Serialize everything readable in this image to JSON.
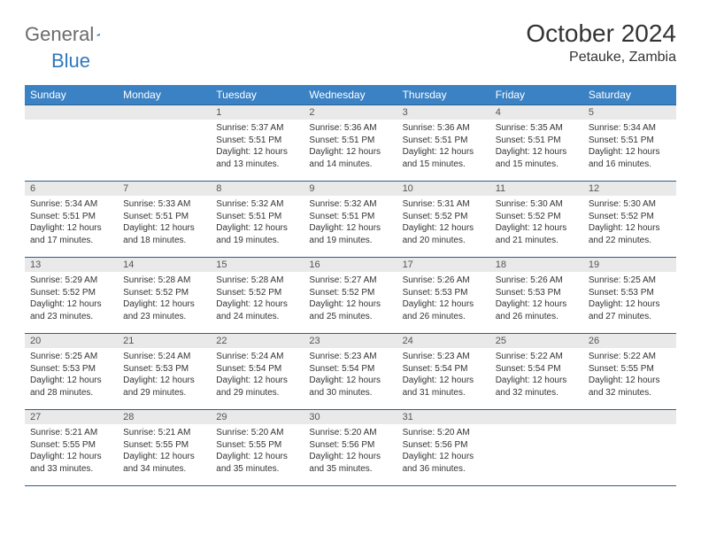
{
  "brand": {
    "part1": "General",
    "part2": "Blue"
  },
  "title": "October 2024",
  "location": "Petauke, Zambia",
  "colors": {
    "header_bg": "#3b82c4",
    "header_text": "#ffffff",
    "daynum_bg": "#e9e9e9",
    "rule": "#2b5f8f",
    "brand_gray": "#6b6b6b",
    "brand_blue": "#2f78bd"
  },
  "weekdays": [
    "Sunday",
    "Monday",
    "Tuesday",
    "Wednesday",
    "Thursday",
    "Friday",
    "Saturday"
  ],
  "weeks": [
    [
      {
        "blank": true
      },
      {
        "blank": true
      },
      {
        "n": "1",
        "sr": "5:37 AM",
        "ss": "5:51 PM",
        "dl": "Daylight: 12 hours and 13 minutes."
      },
      {
        "n": "2",
        "sr": "5:36 AM",
        "ss": "5:51 PM",
        "dl": "Daylight: 12 hours and 14 minutes."
      },
      {
        "n": "3",
        "sr": "5:36 AM",
        "ss": "5:51 PM",
        "dl": "Daylight: 12 hours and 15 minutes."
      },
      {
        "n": "4",
        "sr": "5:35 AM",
        "ss": "5:51 PM",
        "dl": "Daylight: 12 hours and 15 minutes."
      },
      {
        "n": "5",
        "sr": "5:34 AM",
        "ss": "5:51 PM",
        "dl": "Daylight: 12 hours and 16 minutes."
      }
    ],
    [
      {
        "n": "6",
        "sr": "5:34 AM",
        "ss": "5:51 PM",
        "dl": "Daylight: 12 hours and 17 minutes."
      },
      {
        "n": "7",
        "sr": "5:33 AM",
        "ss": "5:51 PM",
        "dl": "Daylight: 12 hours and 18 minutes."
      },
      {
        "n": "8",
        "sr": "5:32 AM",
        "ss": "5:51 PM",
        "dl": "Daylight: 12 hours and 19 minutes."
      },
      {
        "n": "9",
        "sr": "5:32 AM",
        "ss": "5:51 PM",
        "dl": "Daylight: 12 hours and 19 minutes."
      },
      {
        "n": "10",
        "sr": "5:31 AM",
        "ss": "5:52 PM",
        "dl": "Daylight: 12 hours and 20 minutes."
      },
      {
        "n": "11",
        "sr": "5:30 AM",
        "ss": "5:52 PM",
        "dl": "Daylight: 12 hours and 21 minutes."
      },
      {
        "n": "12",
        "sr": "5:30 AM",
        "ss": "5:52 PM",
        "dl": "Daylight: 12 hours and 22 minutes."
      }
    ],
    [
      {
        "n": "13",
        "sr": "5:29 AM",
        "ss": "5:52 PM",
        "dl": "Daylight: 12 hours and 23 minutes."
      },
      {
        "n": "14",
        "sr": "5:28 AM",
        "ss": "5:52 PM",
        "dl": "Daylight: 12 hours and 23 minutes."
      },
      {
        "n": "15",
        "sr": "5:28 AM",
        "ss": "5:52 PM",
        "dl": "Daylight: 12 hours and 24 minutes."
      },
      {
        "n": "16",
        "sr": "5:27 AM",
        "ss": "5:52 PM",
        "dl": "Daylight: 12 hours and 25 minutes."
      },
      {
        "n": "17",
        "sr": "5:26 AM",
        "ss": "5:53 PM",
        "dl": "Daylight: 12 hours and 26 minutes."
      },
      {
        "n": "18",
        "sr": "5:26 AM",
        "ss": "5:53 PM",
        "dl": "Daylight: 12 hours and 26 minutes."
      },
      {
        "n": "19",
        "sr": "5:25 AM",
        "ss": "5:53 PM",
        "dl": "Daylight: 12 hours and 27 minutes."
      }
    ],
    [
      {
        "n": "20",
        "sr": "5:25 AM",
        "ss": "5:53 PM",
        "dl": "Daylight: 12 hours and 28 minutes."
      },
      {
        "n": "21",
        "sr": "5:24 AM",
        "ss": "5:53 PM",
        "dl": "Daylight: 12 hours and 29 minutes."
      },
      {
        "n": "22",
        "sr": "5:24 AM",
        "ss": "5:54 PM",
        "dl": "Daylight: 12 hours and 29 minutes."
      },
      {
        "n": "23",
        "sr": "5:23 AM",
        "ss": "5:54 PM",
        "dl": "Daylight: 12 hours and 30 minutes."
      },
      {
        "n": "24",
        "sr": "5:23 AM",
        "ss": "5:54 PM",
        "dl": "Daylight: 12 hours and 31 minutes."
      },
      {
        "n": "25",
        "sr": "5:22 AM",
        "ss": "5:54 PM",
        "dl": "Daylight: 12 hours and 32 minutes."
      },
      {
        "n": "26",
        "sr": "5:22 AM",
        "ss": "5:55 PM",
        "dl": "Daylight: 12 hours and 32 minutes."
      }
    ],
    [
      {
        "n": "27",
        "sr": "5:21 AM",
        "ss": "5:55 PM",
        "dl": "Daylight: 12 hours and 33 minutes."
      },
      {
        "n": "28",
        "sr": "5:21 AM",
        "ss": "5:55 PM",
        "dl": "Daylight: 12 hours and 34 minutes."
      },
      {
        "n": "29",
        "sr": "5:20 AM",
        "ss": "5:55 PM",
        "dl": "Daylight: 12 hours and 35 minutes."
      },
      {
        "n": "30",
        "sr": "5:20 AM",
        "ss": "5:56 PM",
        "dl": "Daylight: 12 hours and 35 minutes."
      },
      {
        "n": "31",
        "sr": "5:20 AM",
        "ss": "5:56 PM",
        "dl": "Daylight: 12 hours and 36 minutes."
      },
      {
        "blank": true
      },
      {
        "blank": true
      }
    ]
  ]
}
